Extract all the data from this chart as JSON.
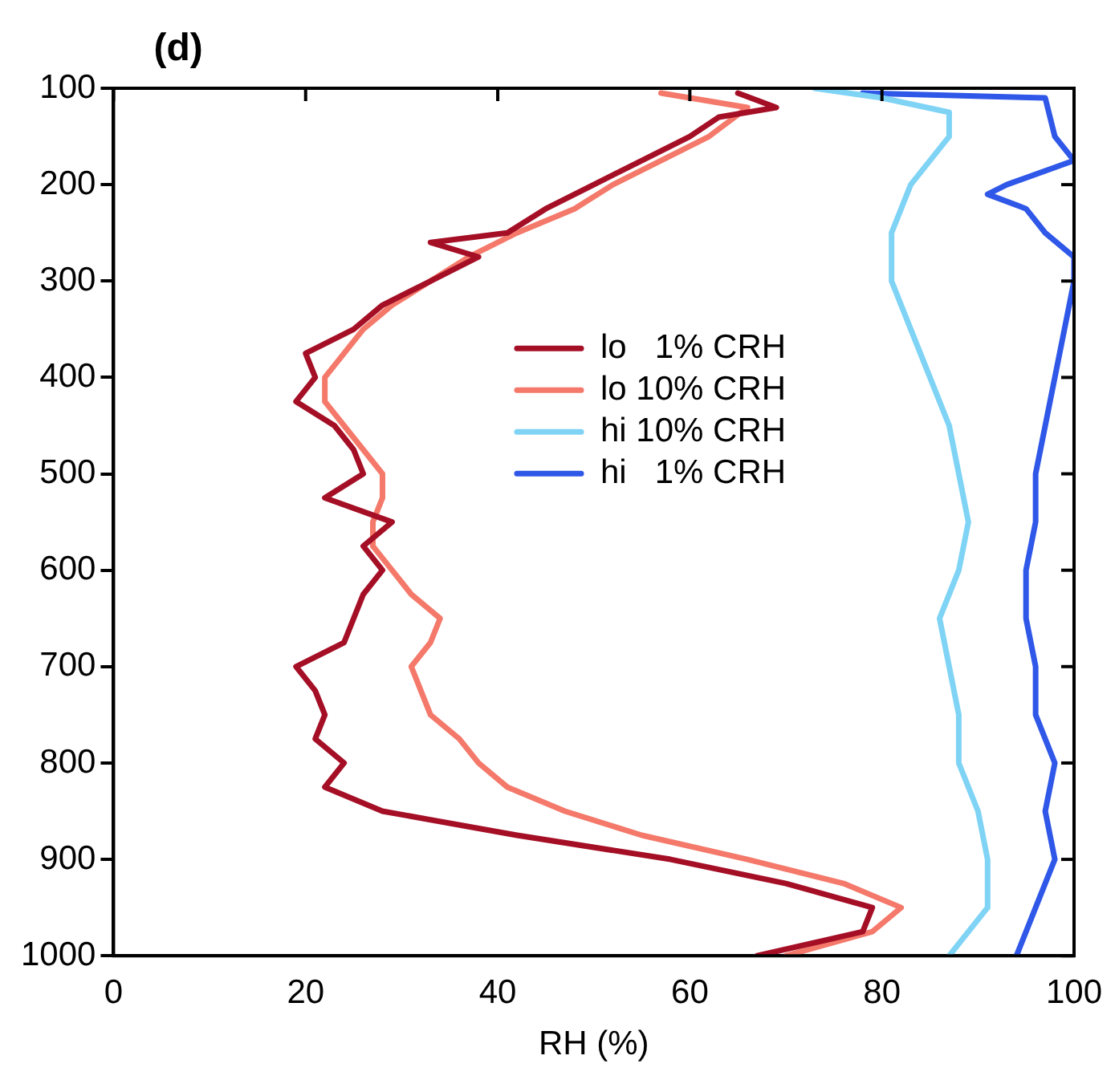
{
  "chart_data": {
    "type": "line",
    "title": "(d)",
    "xlabel": "RH (%)",
    "xlim": [
      0,
      100
    ],
    "xticks": [
      0,
      20,
      40,
      60,
      80,
      100
    ],
    "ylim": [
      1000,
      100
    ],
    "yticks": [
      100,
      200,
      300,
      400,
      500,
      600,
      700,
      800,
      900,
      1000
    ],
    "grid": false,
    "legend": "center",
    "marker": "none",
    "line_style": "solid",
    "series": [
      {
        "name": "lo   1% CRH",
        "color": "#a50f26",
        "x": [
          65,
          69,
          63,
          60,
          55,
          50,
          45,
          41,
          33,
          38,
          33,
          28,
          25,
          20,
          21,
          19,
          23,
          25,
          26,
          22,
          29,
          26,
          28,
          26,
          25,
          24,
          19,
          21,
          22,
          21,
          24,
          22,
          28,
          42,
          58,
          70,
          79,
          78,
          67
        ],
        "values": [
          105,
          120,
          130,
          150,
          175,
          200,
          225,
          250,
          260,
          275,
          300,
          325,
          350,
          375,
          400,
          425,
          450,
          475,
          500,
          525,
          550,
          575,
          600,
          625,
          650,
          675,
          700,
          725,
          750,
          775,
          800,
          825,
          850,
          875,
          900,
          925,
          950,
          975,
          1000
        ]
      },
      {
        "name": "lo 10% CRH",
        "color": "#f4796a",
        "x": [
          57,
          66,
          62,
          57,
          52,
          48,
          42,
          37,
          33,
          29,
          26,
          24,
          22,
          22,
          24,
          26,
          28,
          28,
          27,
          27,
          29,
          31,
          34,
          33,
          31,
          32,
          33,
          36,
          38,
          41,
          47,
          55,
          66,
          76,
          82,
          79,
          70
        ],
        "values": [
          105,
          120,
          150,
          175,
          200,
          225,
          250,
          275,
          300,
          325,
          350,
          375,
          400,
          425,
          450,
          475,
          500,
          525,
          550,
          575,
          600,
          625,
          650,
          675,
          700,
          725,
          750,
          775,
          800,
          825,
          850,
          875,
          900,
          925,
          950,
          975,
          1000
        ]
      },
      {
        "name": "hi 10% CRH",
        "color": "#7fd3f5",
        "x": [
          73,
          80,
          87,
          87,
          83,
          81,
          81,
          83,
          85,
          87,
          88,
          89,
          88,
          86,
          87,
          88,
          88,
          90,
          91,
          91,
          87
        ],
        "values": [
          100,
          110,
          125,
          150,
          200,
          250,
          300,
          350,
          400,
          450,
          500,
          550,
          600,
          650,
          700,
          750,
          800,
          850,
          900,
          950,
          1000
        ]
      },
      {
        "name": "hi   1% CRH",
        "color": "#2f57e8",
        "x": [
          78,
          97,
          98,
          100,
          93,
          91,
          95,
          97,
          100,
          100,
          99,
          98,
          97,
          96,
          96,
          95,
          95,
          96,
          96,
          98,
          97,
          98,
          96,
          94
        ],
        "values": [
          105,
          110,
          150,
          175,
          200,
          210,
          225,
          250,
          275,
          300,
          350,
          400,
          450,
          500,
          550,
          600,
          650,
          700,
          750,
          800,
          850,
          900,
          950,
          1000
        ]
      }
    ]
  }
}
